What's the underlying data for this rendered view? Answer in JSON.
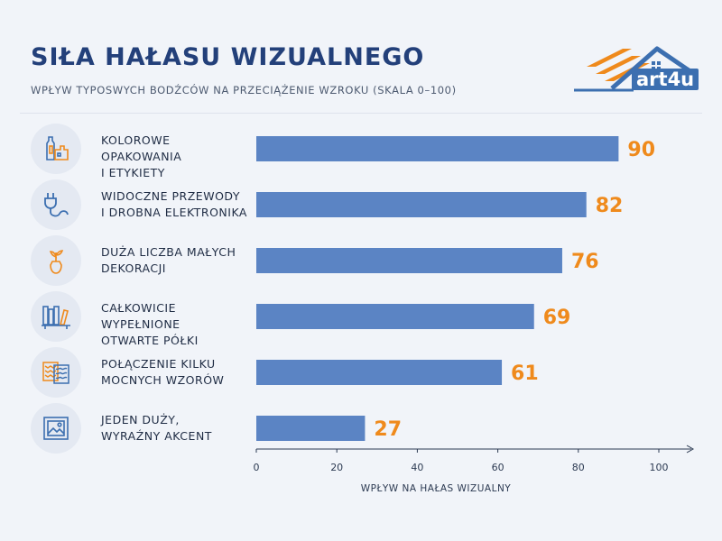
{
  "header": {
    "title": "SIŁA HAŁASU WIZUALNEGO",
    "subtitle": "WPŁYW TYPOSWYCH BODŹCÓW NA PRZECIĄŻENIE WZROKU (SKALA 0–100)"
  },
  "logo": {
    "text": "art4u"
  },
  "colors": {
    "bar": "#5b84c4",
    "value": "#ef8a1c",
    "title": "#23407a",
    "icon_stroke": "#3c6fb0",
    "icon_accent": "#ef8a1c"
  },
  "categories": [
    {
      "line1": "KOLOROWE OPAKOWANIA",
      "line2": "I ETYKIETY",
      "icon": "bottles-and-boxes-icon"
    },
    {
      "line1": "WIDOCZNE PRZEWODY",
      "line2": "I DROBNA ELEKTRONIKA",
      "icon": "plug-cable-icon"
    },
    {
      "line1": "DUŻA LICZBA MAŁYCH",
      "line2": "DEKORACJI",
      "icon": "vase-plant-icon"
    },
    {
      "line1": "CAŁKOWICIE WYPEŁNIONE",
      "line2": "OTWARTE PÓŁKI",
      "icon": "bookshelf-icon"
    },
    {
      "line1": "POŁĄCZENIE KILKU",
      "line2": "MOCNYCH WZORÓW",
      "icon": "patterns-icon"
    },
    {
      "line1": "JEDEN DUŻY,",
      "line2": "WYRAŹNY AKCENT",
      "icon": "framed-picture-icon"
    }
  ],
  "chart_data": {
    "type": "bar",
    "orientation": "horizontal",
    "title": "SIŁA HAŁASU WIZUALNEGO",
    "subtitle": "WPŁYW TYPOSWYCH BODŹCÓW NA PRZECIĄŻENIE WZROKU (SKALA 0–100)",
    "categories": [
      "KOLOROWE OPAKOWANIA I ETYKIETY",
      "WIDOCZNE PRZEWODY I DROBNA ELEKTRONIKA",
      "DUŻA LICZBA MAŁYCH DEKORACJI",
      "CAŁKOWICIE WYPEŁNIONE OTWARTE PÓŁKI",
      "POŁĄCZENIE KILKU MOCNYCH WZORÓW",
      "JEDEN DUŻY, WYRAŹNY AKCENT"
    ],
    "values": [
      90,
      82,
      76,
      69,
      61,
      27
    ],
    "xlabel": "WPŁYW NA HAŁAS WIZUALNY",
    "ylabel": "",
    "xlim": [
      0,
      110
    ],
    "xticks": [
      0,
      20,
      40,
      60,
      80,
      100
    ],
    "grid": false,
    "legend": "none"
  }
}
